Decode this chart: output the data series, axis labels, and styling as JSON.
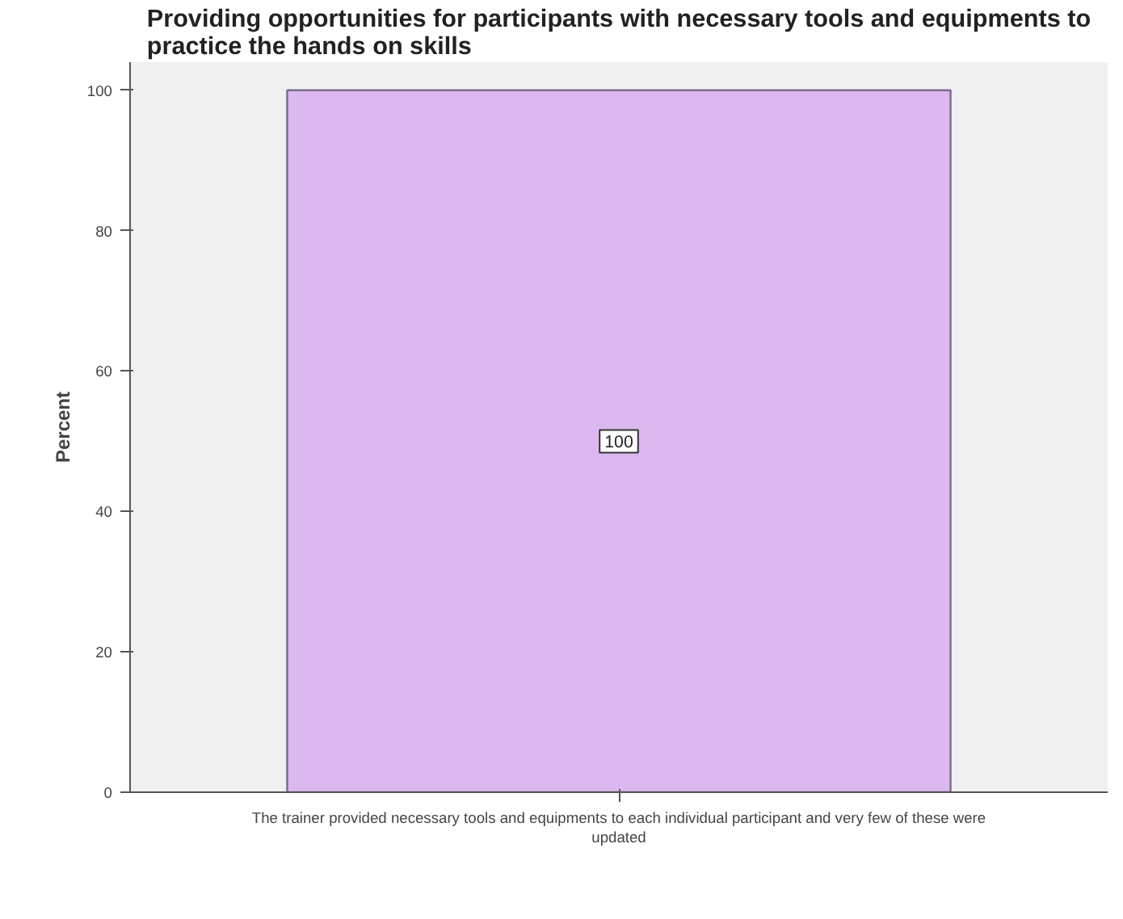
{
  "chart_data": {
    "type": "bar",
    "title": "Providing opportunities for participants with necessary tools and equipments to practice the hands on skills",
    "ylabel": "Percent",
    "categories": [
      "The trainer provided necessary tools and equipments to each individual participant and very few of these were updated"
    ],
    "values": [
      100
    ],
    "color": "#dcb8f0",
    "ylim": [
      0,
      104
    ],
    "yticks": [
      0,
      20,
      40,
      60,
      80,
      100
    ],
    "grid": false,
    "data_labels": true
  }
}
